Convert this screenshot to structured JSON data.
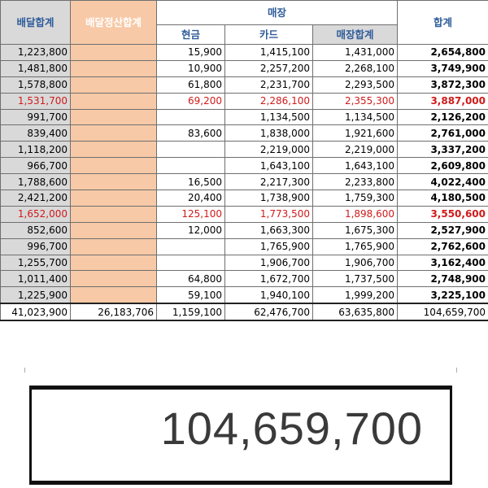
{
  "headers": {
    "col_delivery_total": "배달합계",
    "col_delivery_settlement_total": "배달정산합계",
    "group_store": "매장",
    "col_cash": "현금",
    "col_card": "카드",
    "col_store_total": "매장합계",
    "col_grand_total": "합계"
  },
  "rows": [
    {
      "delivery": "1,223,800",
      "settle": "",
      "cash": "15,900",
      "card": "1,415,100",
      "store": "1,431,000",
      "total": "2,654,800",
      "red": false
    },
    {
      "delivery": "1,481,800",
      "settle": "",
      "cash": "10,900",
      "card": "2,257,200",
      "store": "2,268,100",
      "total": "3,749,900",
      "red": false
    },
    {
      "delivery": "1,578,800",
      "settle": "",
      "cash": "61,800",
      "card": "2,231,700",
      "store": "2,293,500",
      "total": "3,872,300",
      "red": false
    },
    {
      "delivery": "1,531,700",
      "settle": "",
      "cash": "69,200",
      "card": "2,286,100",
      "store": "2,355,300",
      "total": "3,887,000",
      "red": true
    },
    {
      "delivery": "991,700",
      "settle": "",
      "cash": "",
      "card": "1,134,500",
      "store": "1,134,500",
      "total": "2,126,200",
      "red": false
    },
    {
      "delivery": "839,400",
      "settle": "",
      "cash": "83,600",
      "card": "1,838,000",
      "store": "1,921,600",
      "total": "2,761,000",
      "red": false
    },
    {
      "delivery": "1,118,200",
      "settle": "",
      "cash": "",
      "card": "2,219,000",
      "store": "2,219,000",
      "total": "3,337,200",
      "red": false
    },
    {
      "delivery": "966,700",
      "settle": "",
      "cash": "",
      "card": "1,643,100",
      "store": "1,643,100",
      "total": "2,609,800",
      "red": false
    },
    {
      "delivery": "1,788,600",
      "settle": "",
      "cash": "16,500",
      "card": "2,217,300",
      "store": "2,233,800",
      "total": "4,022,400",
      "red": false
    },
    {
      "delivery": "2,421,200",
      "settle": "",
      "cash": "20,400",
      "card": "1,738,900",
      "store": "1,759,300",
      "total": "4,180,500",
      "red": false
    },
    {
      "delivery": "1,652,000",
      "settle": "",
      "cash": "125,100",
      "card": "1,773,500",
      "store": "1,898,600",
      "total": "3,550,600",
      "red": true
    },
    {
      "delivery": "852,600",
      "settle": "",
      "cash": "12,000",
      "card": "1,663,300",
      "store": "1,675,300",
      "total": "2,527,900",
      "red": false
    },
    {
      "delivery": "996,700",
      "settle": "",
      "cash": "",
      "card": "1,765,900",
      "store": "1,765,900",
      "total": "2,762,600",
      "red": false
    },
    {
      "delivery": "1,255,700",
      "settle": "",
      "cash": "",
      "card": "1,906,700",
      "store": "1,906,700",
      "total": "3,162,400",
      "red": false
    },
    {
      "delivery": "1,011,400",
      "settle": "",
      "cash": "64,800",
      "card": "1,672,700",
      "store": "1,737,500",
      "total": "2,748,900",
      "red": false
    },
    {
      "delivery": "1,225,900",
      "settle": "",
      "cash": "59,100",
      "card": "1,940,100",
      "store": "1,999,200",
      "total": "3,225,100",
      "red": false
    }
  ],
  "totals": {
    "delivery": "41,023,900",
    "settle": "26,183,706",
    "cash": "1,159,100",
    "card": "62,476,700",
    "store": "63,635,800",
    "total": "104,659,700"
  },
  "zoom": {
    "value": "104,659,700"
  }
}
